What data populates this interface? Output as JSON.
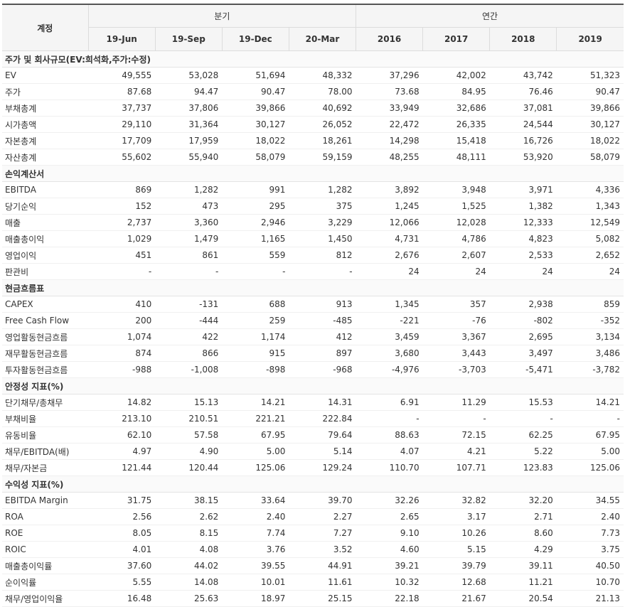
{
  "header": {
    "account_label": "계정",
    "quarter_group": "분기",
    "annual_group": "연간",
    "periods": [
      "19-Jun",
      "19-Sep",
      "19-Dec",
      "20-Mar",
      "2016",
      "2017",
      "2018",
      "2019"
    ]
  },
  "sections": [
    {
      "title": "주가 및 회사규모(EV:희석화,주가:수정)",
      "rows": [
        {
          "label": "EV",
          "values": [
            "49,555",
            "53,028",
            "51,694",
            "48,332",
            "37,296",
            "42,002",
            "43,742",
            "51,323"
          ]
        },
        {
          "label": "주가",
          "values": [
            "87.68",
            "94.47",
            "90.47",
            "78.00",
            "73.68",
            "84.95",
            "76.46",
            "90.47"
          ]
        },
        {
          "label": "부채총계",
          "values": [
            "37,737",
            "37,806",
            "39,866",
            "40,692",
            "33,949",
            "32,686",
            "37,081",
            "39,866"
          ]
        },
        {
          "label": "시가총액",
          "values": [
            "29,110",
            "31,364",
            "30,127",
            "26,052",
            "22,472",
            "26,335",
            "24,544",
            "30,127"
          ]
        },
        {
          "label": "자본총계",
          "values": [
            "17,709",
            "17,959",
            "18,022",
            "18,261",
            "14,298",
            "15,418",
            "16,726",
            "18,022"
          ]
        },
        {
          "label": "자산총계",
          "values": [
            "55,602",
            "55,940",
            "58,079",
            "59,159",
            "48,255",
            "48,111",
            "53,920",
            "58,079"
          ]
        }
      ]
    },
    {
      "title": "손익계산서",
      "rows": [
        {
          "label": "EBITDA",
          "values": [
            "869",
            "1,282",
            "991",
            "1,282",
            "3,892",
            "3,948",
            "3,971",
            "4,336"
          ]
        },
        {
          "label": "당기순익",
          "values": [
            "152",
            "473",
            "295",
            "375",
            "1,245",
            "1,525",
            "1,382",
            "1,343"
          ]
        },
        {
          "label": "매출",
          "values": [
            "2,737",
            "3,360",
            "2,946",
            "3,229",
            "12,066",
            "12,028",
            "12,333",
            "12,549"
          ]
        },
        {
          "label": "매출총이익",
          "values": [
            "1,029",
            "1,479",
            "1,165",
            "1,450",
            "4,731",
            "4,786",
            "4,823",
            "5,082"
          ]
        },
        {
          "label": "영업이익",
          "values": [
            "451",
            "861",
            "559",
            "812",
            "2,676",
            "2,607",
            "2,533",
            "2,652"
          ]
        },
        {
          "label": "판관비",
          "values": [
            "-",
            "-",
            "-",
            "-",
            "24",
            "24",
            "24",
            "24"
          ]
        }
      ]
    },
    {
      "title": "현금흐름표",
      "rows": [
        {
          "label": "CAPEX",
          "values": [
            "410",
            "-131",
            "688",
            "913",
            "1,345",
            "357",
            "2,938",
            "859"
          ]
        },
        {
          "label": "Free Cash Flow",
          "values": [
            "200",
            "-444",
            "259",
            "-485",
            "-221",
            "-76",
            "-802",
            "-352"
          ]
        },
        {
          "label": "영업활동현금흐름",
          "values": [
            "1,074",
            "422",
            "1,174",
            "412",
            "3,459",
            "3,367",
            "2,695",
            "3,134"
          ]
        },
        {
          "label": "재무활동현금흐름",
          "values": [
            "874",
            "866",
            "915",
            "897",
            "3,680",
            "3,443",
            "3,497",
            "3,486"
          ]
        },
        {
          "label": "투자활동현금흐름",
          "values": [
            "-988",
            "-1,008",
            "-898",
            "-968",
            "-4,976",
            "-3,703",
            "-5,471",
            "-3,782"
          ]
        }
      ]
    },
    {
      "title": "안정성 지표(%)",
      "rows": [
        {
          "label": "단기채무/총채무",
          "values": [
            "14.82",
            "15.13",
            "14.21",
            "14.31",
            "6.91",
            "11.29",
            "15.53",
            "14.21"
          ]
        },
        {
          "label": "부채비율",
          "values": [
            "213.10",
            "210.51",
            "221.21",
            "222.84",
            "-",
            "-",
            "-",
            "-"
          ]
        },
        {
          "label": "유동비율",
          "values": [
            "62.10",
            "57.58",
            "67.95",
            "79.64",
            "88.63",
            "72.15",
            "62.25",
            "67.95"
          ]
        },
        {
          "label": "채무/EBITDA(배)",
          "values": [
            "4.97",
            "4.90",
            "5.00",
            "5.14",
            "4.07",
            "4.21",
            "5.22",
            "5.00"
          ]
        },
        {
          "label": "채무/자본금",
          "values": [
            "121.44",
            "120.44",
            "125.06",
            "129.24",
            "110.70",
            "107.71",
            "123.83",
            "125.06"
          ]
        }
      ]
    },
    {
      "title": "수익성 지표(%)",
      "rows": [
        {
          "label": "EBITDA Margin",
          "values": [
            "31.75",
            "38.15",
            "33.64",
            "39.70",
            "32.26",
            "32.82",
            "32.20",
            "34.55"
          ]
        },
        {
          "label": "ROA",
          "values": [
            "2.56",
            "2.62",
            "2.40",
            "2.27",
            "2.65",
            "3.17",
            "2.71",
            "2.40"
          ]
        },
        {
          "label": "ROE",
          "values": [
            "8.05",
            "8.15",
            "7.74",
            "7.27",
            "9.10",
            "10.26",
            "8.60",
            "7.73"
          ]
        },
        {
          "label": "ROIC",
          "values": [
            "4.01",
            "4.08",
            "3.76",
            "3.52",
            "4.60",
            "5.15",
            "4.29",
            "3.75"
          ]
        },
        {
          "label": "매출총이익률",
          "values": [
            "37.60",
            "44.02",
            "39.55",
            "44.91",
            "39.21",
            "39.79",
            "39.11",
            "40.50"
          ]
        },
        {
          "label": "순이익률",
          "values": [
            "5.55",
            "14.08",
            "10.01",
            "11.61",
            "10.32",
            "12.68",
            "11.21",
            "10.70"
          ]
        },
        {
          "label": "채무/영업이익율",
          "values": [
            "16.48",
            "25.63",
            "18.97",
            "25.15",
            "22.18",
            "21.67",
            "20.54",
            "21.13"
          ]
        }
      ]
    }
  ]
}
